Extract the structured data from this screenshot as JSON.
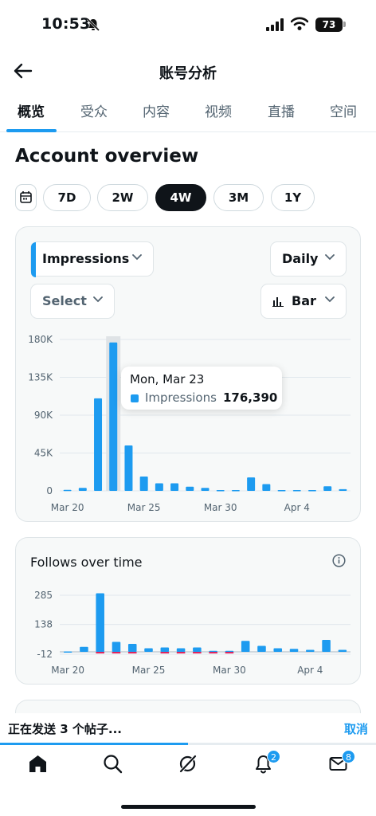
{
  "status_bar": {
    "time": "10:53",
    "battery": "73"
  },
  "header": {
    "title": "账号分析"
  },
  "tabs": [
    {
      "label": "概览",
      "active": true
    },
    {
      "label": "受众",
      "active": false
    },
    {
      "label": "内容",
      "active": false
    },
    {
      "label": "视频",
      "active": false
    },
    {
      "label": "直播",
      "active": false
    },
    {
      "label": "空间",
      "active": false
    }
  ],
  "page_title": "Account overview",
  "ranges": [
    {
      "label": "7D",
      "active": false
    },
    {
      "label": "2W",
      "active": false
    },
    {
      "label": "4W",
      "active": true
    },
    {
      "label": "3M",
      "active": false
    },
    {
      "label": "1Y",
      "active": false
    }
  ],
  "impressions_card": {
    "metric_select": "Impressions",
    "interval_select": "Daily",
    "compare_select": "Select",
    "chart_type_select": "Bar",
    "tooltip": {
      "date": "Mon, Mar 23",
      "series": "Impressions",
      "value": "176,390"
    }
  },
  "follows_card": {
    "title": "Follows over time"
  },
  "sending_bar": {
    "text": "正在发送 3 个帖子...",
    "cancel": "取消",
    "progress": 0.5
  },
  "nav_badges": {
    "notifications": "2",
    "messages": "8"
  },
  "colors": {
    "accent": "#1d9bf0",
    "negative": "#e0245e"
  },
  "chart_data": [
    {
      "type": "bar",
      "series": [
        {
          "name": "Impressions",
          "values": [
            1200,
            3500,
            110000,
            176390,
            54000,
            17000,
            9000,
            9000,
            5000,
            3500,
            1000,
            1000,
            16000,
            8000,
            1000,
            1000,
            1000,
            5500,
            2000
          ]
        }
      ],
      "x_tick_labels": [
        "Mar 20",
        "Mar 25",
        "Mar 30",
        "Apr 4"
      ],
      "y_tick_labels": [
        "180K",
        "135K",
        "90K",
        "45K",
        "0"
      ],
      "ylim": [
        0,
        180000
      ],
      "highlight_index": 3,
      "grid": true
    },
    {
      "type": "bar",
      "title": "Follows over time",
      "series": [
        {
          "name": "Follows",
          "positive": [
            2,
            25,
            295,
            50,
            40,
            18,
            22,
            18,
            22,
            5,
            5,
            55,
            30,
            18,
            15,
            10,
            60,
            10
          ],
          "negative": [
            0,
            0,
            -5,
            -5,
            -5,
            0,
            -3,
            -3,
            -6,
            -3,
            -3,
            0,
            0,
            0,
            0,
            0,
            0,
            0
          ]
        }
      ],
      "x_tick_labels": [
        "Mar 20",
        "Mar 25",
        "Mar 30",
        "Apr 4"
      ],
      "y_tick_labels": [
        "285",
        "138",
        "-12"
      ],
      "ylim": [
        -12,
        285
      ],
      "grid": true
    }
  ]
}
